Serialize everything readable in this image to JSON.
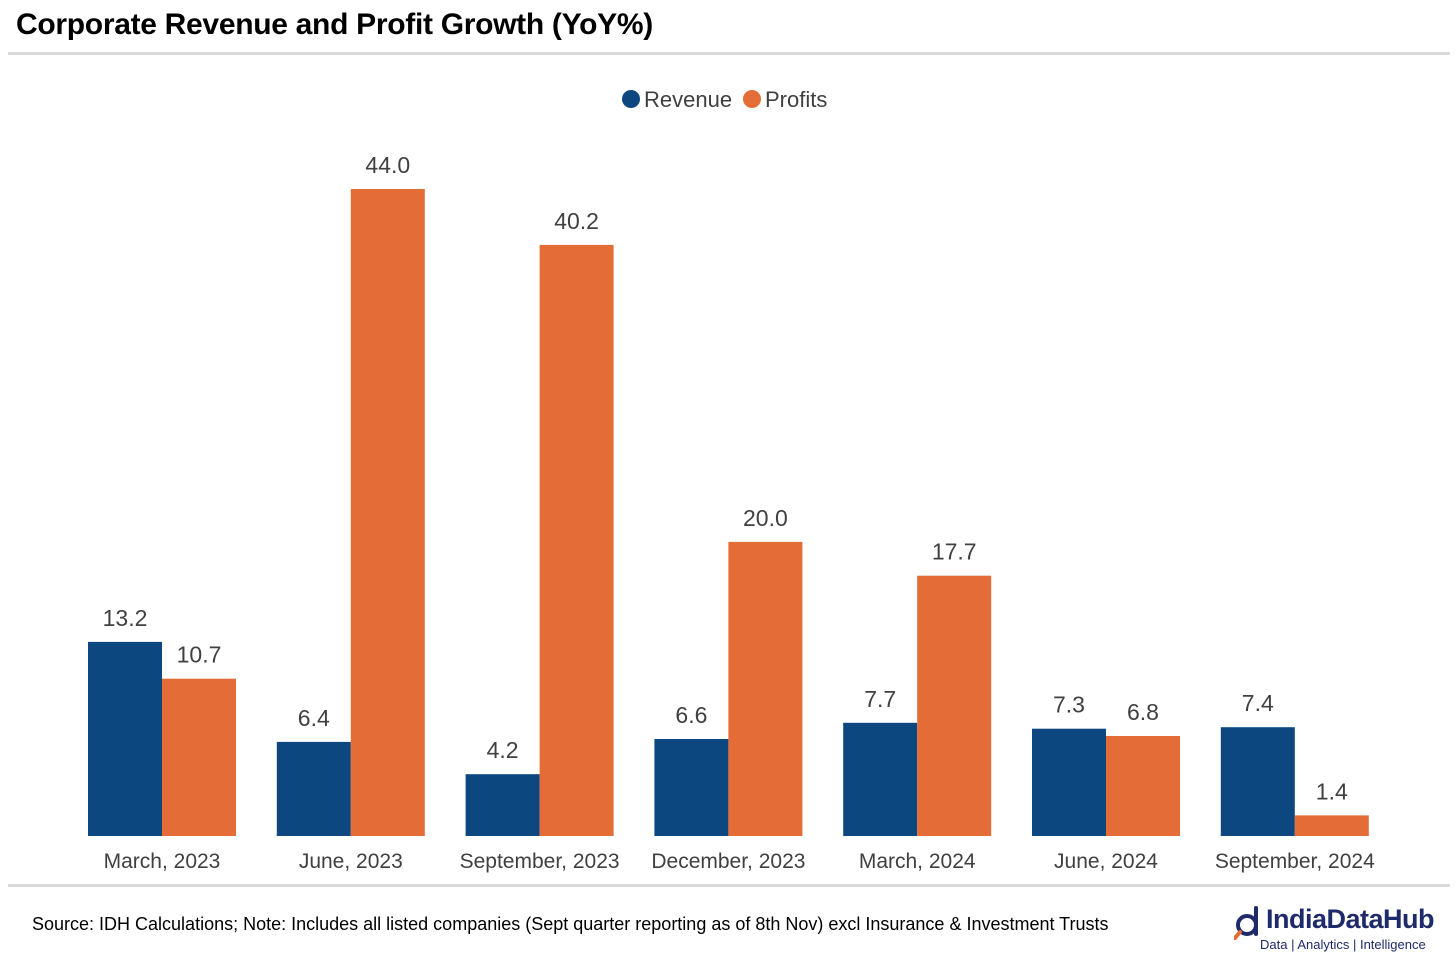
{
  "title": "Corporate Revenue and Profit Growth (YoY%)",
  "footer": {
    "source": "Source: IDH Calculations; Note: Includes all listed companies (Sept quarter reporting as of 8th Nov) excl Insurance & Investment Trusts"
  },
  "brand": {
    "name": "IndiaDataHub",
    "tagline": "Data | Analytics | Intelligence",
    "icon": "magnifier-d-logo-icon"
  },
  "colors": {
    "revenue": "#0d4780",
    "profits": "#e46c37",
    "label_text": "#404040",
    "rule": "#d9d9d9"
  },
  "chart_data": {
    "type": "bar",
    "categories": [
      "March, 2023",
      "June, 2023",
      "September, 2023",
      "December, 2023",
      "March, 2024",
      "June, 2024",
      "September, 2024"
    ],
    "series": [
      {
        "name": "Revenue",
        "values": [
          13.2,
          6.4,
          4.2,
          6.6,
          7.7,
          7.3,
          7.4
        ],
        "labels": [
          "13.2",
          "6.4",
          "4.2",
          "6.6",
          "7.7",
          "7.3",
          "7.4"
        ]
      },
      {
        "name": "Profits",
        "values": [
          10.7,
          44.0,
          40.2,
          20.0,
          17.7,
          6.8,
          1.4
        ],
        "labels": [
          "10.7",
          "44.0",
          "40.2",
          "20.0",
          "17.7",
          "6.8",
          "1.4"
        ]
      }
    ],
    "title": "Corporate Revenue and Profit Growth (YoY%)",
    "xlabel": "",
    "ylabel": "",
    "ylim": [
      0,
      44
    ],
    "grid": false,
    "legend": "top-center",
    "data_labels": true
  }
}
